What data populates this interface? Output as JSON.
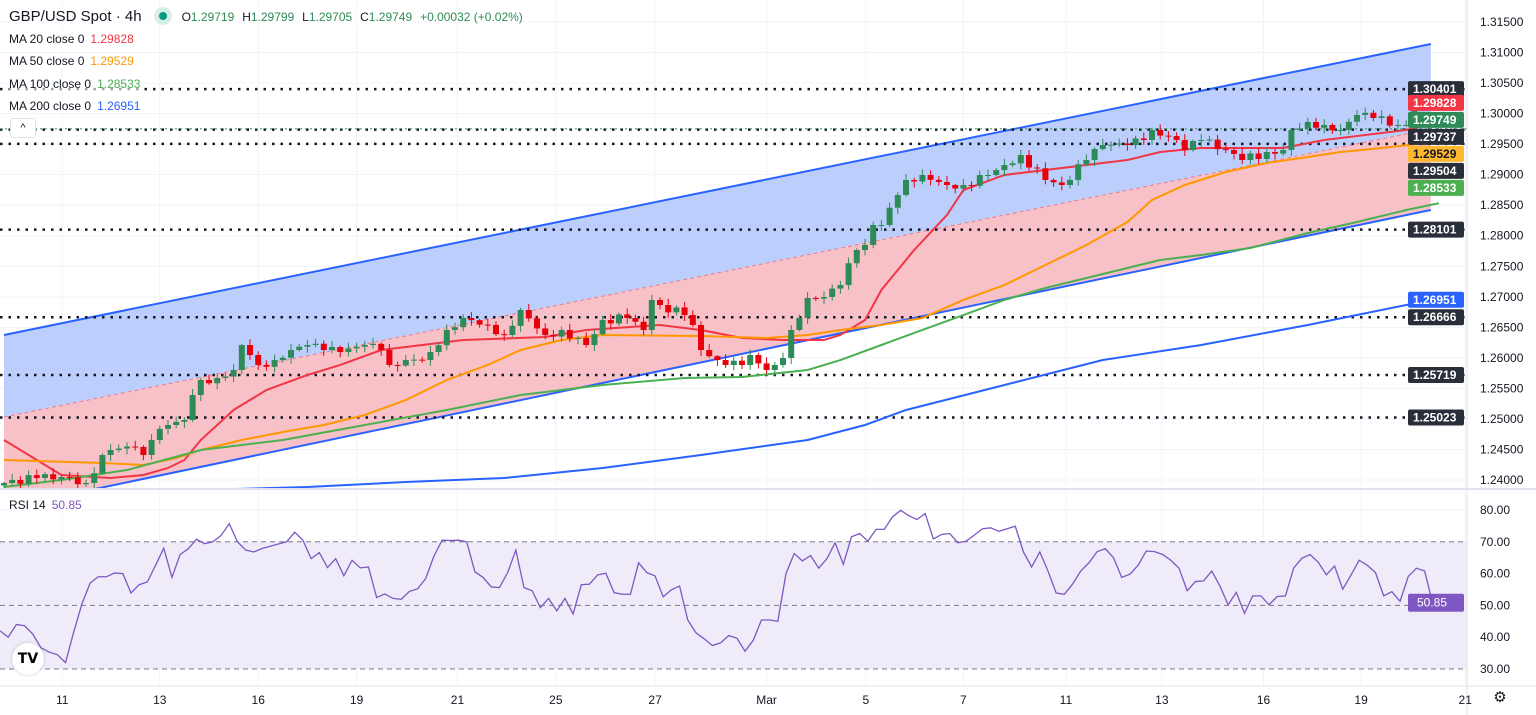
{
  "header": {
    "symbol": "GBP/USD Spot · 4h",
    "open_label": "O",
    "open": "1.29719",
    "high_label": "H",
    "high": "1.29799",
    "low_label": "L",
    "low": "1.29705",
    "close_label": "C",
    "close": "1.29749",
    "change": "+0.00032 (+0.02%)"
  },
  "indicators": [
    {
      "label": "MA 20 close 0",
      "value": "1.29828",
      "color": "#f23645"
    },
    {
      "label": "MA 50 close 0",
      "value": "1.29529",
      "color": "#ff9800"
    },
    {
      "label": "MA 100 close 0",
      "value": "1.28533",
      "color": "#4caf50"
    },
    {
      "label": "MA 200 close 0",
      "value": "1.26951",
      "color": "#2962ff"
    }
  ],
  "rsi_legend": {
    "label": "RSI 14",
    "value": "50.85"
  },
  "icons": {
    "collapse": "chevron-up-icon",
    "logo": "tradingview-logo",
    "settings": "gear-icon"
  },
  "collapse_glyph": "^",
  "logo_text": "TV",
  "gear_glyph": "⚙",
  "chart_data": {
    "type": "candlestick",
    "title": "GBP/USD Spot · 4h",
    "ylim": [
      1.2375,
      1.3185
    ],
    "price_ticks": [
      "1.24000",
      "1.24500",
      "1.25000",
      "1.25500",
      "1.26000",
      "1.26500",
      "1.27000",
      "1.27500",
      "1.28000",
      "1.28500",
      "1.29000",
      "1.29500",
      "1.30000",
      "1.30500",
      "1.31000",
      "1.31500"
    ],
    "x_labels": [
      {
        "label": "11",
        "bar": 7.1
      },
      {
        "label": "13",
        "bar": 19
      },
      {
        "label": "16",
        "bar": 31
      },
      {
        "label": "19",
        "bar": 43
      },
      {
        "label": "21",
        "bar": 55.3
      },
      {
        "label": "25",
        "bar": 67.3
      },
      {
        "label": "27",
        "bar": 79.4
      },
      {
        "label": "Mar",
        "bar": 93
      },
      {
        "label": "5",
        "bar": 105.1
      },
      {
        "label": "7",
        "bar": 117
      },
      {
        "label": "11",
        "bar": 129.5
      },
      {
        "label": "13",
        "bar": 141.2
      },
      {
        "label": "16",
        "bar": 153.6
      },
      {
        "label": "19",
        "bar": 165.5
      },
      {
        "label": "21",
        "bar": 178.2
      }
    ],
    "close_path": [
      [
        0,
        1.23951
      ],
      [
        4,
        1.24033
      ],
      [
        7,
        1.2405
      ],
      [
        10,
        1.23951
      ],
      [
        12,
        1.2441
      ],
      [
        13,
        1.24492
      ],
      [
        16,
        1.24541
      ],
      [
        17,
        1.2441
      ],
      [
        18,
        1.24655
      ],
      [
        20,
        1.24901
      ],
      [
        22,
        1.24983
      ],
      [
        23,
        1.25392
      ],
      [
        24,
        1.25638
      ],
      [
        26,
        1.25671
      ],
      [
        28,
        1.25802
      ],
      [
        29,
        1.26211
      ],
      [
        30,
        1.26047
      ],
      [
        31,
        1.25884
      ],
      [
        33,
        1.25965
      ],
      [
        35,
        1.26129
      ],
      [
        37,
        1.26211
      ],
      [
        39,
        1.26129
      ],
      [
        41,
        1.26096
      ],
      [
        44,
        1.26211
      ],
      [
        46,
        1.26129
      ],
      [
        47,
        1.25884
      ],
      [
        49,
        1.25965
      ],
      [
        51,
        1.25965
      ],
      [
        52,
        1.26096
      ],
      [
        54,
        1.26457
      ],
      [
        56,
        1.26653
      ],
      [
        59,
        1.26539
      ],
      [
        61,
        1.26375
      ],
      [
        63,
        1.26784
      ],
      [
        66,
        1.26375
      ],
      [
        68,
        1.26457
      ],
      [
        71,
        1.26211
      ],
      [
        73,
        1.2662
      ],
      [
        76,
        1.26653
      ],
      [
        78,
        1.26457
      ],
      [
        79,
        1.26948
      ],
      [
        80,
        1.26866
      ],
      [
        83,
        1.26702
      ],
      [
        84,
        1.26539
      ],
      [
        85,
        1.26129
      ],
      [
        87,
        1.25965
      ],
      [
        88,
        1.25884
      ],
      [
        90,
        1.25884
      ],
      [
        91,
        1.26047
      ],
      [
        93,
        1.25802
      ],
      [
        94,
        1.25884
      ],
      [
        95,
        1.25998
      ],
      [
        96,
        1.26457
      ],
      [
        98,
        1.26981
      ],
      [
        100,
        1.26997
      ],
      [
        102,
        1.27193
      ],
      [
        104,
        1.27767
      ],
      [
        105,
        1.27849
      ],
      [
        106,
        1.28176
      ],
      [
        107,
        1.28176
      ],
      [
        109,
        1.28667
      ],
      [
        110,
        1.28913
      ],
      [
        112,
        1.28995
      ],
      [
        115,
        1.28831
      ],
      [
        117,
        1.28831
      ],
      [
        120,
        1.28995
      ],
      [
        122,
        1.29158
      ],
      [
        124,
        1.29322
      ],
      [
        127,
        1.28913
      ],
      [
        129,
        1.28831
      ],
      [
        132,
        1.2924
      ],
      [
        134,
        1.29486
      ],
      [
        137,
        1.29486
      ],
      [
        139,
        1.29568
      ],
      [
        140,
        1.29732
      ],
      [
        143,
        1.29568
      ],
      [
        144,
        1.29404
      ],
      [
        146,
        1.29568
      ],
      [
        149,
        1.29404
      ],
      [
        151,
        1.2924
      ],
      [
        154,
        1.29371
      ],
      [
        156,
        1.29404
      ],
      [
        157,
        1.29732
      ],
      [
        159,
        1.29863
      ],
      [
        161,
        1.29814
      ],
      [
        163,
        1.29732
      ],
      [
        165,
        1.29978
      ],
      [
        167,
        1.29928
      ],
      [
        170,
        1.29814
      ],
      [
        171,
        1.29814
      ],
      [
        172,
        1.30092
      ],
      [
        173,
        1.30092
      ],
      [
        174,
        1.29749
      ]
    ],
    "last_bar": {
      "open": 1.29719,
      "high": 1.29799,
      "low": 1.29705,
      "close": 1.29749
    },
    "moving_averages": [
      {
        "name": "MA 20",
        "color": "#f23645",
        "points": [
          [
            0,
            1.24655
          ],
          [
            7,
            1.24082
          ],
          [
            13,
            1.24033
          ],
          [
            17,
            1.24082
          ],
          [
            20,
            1.24197
          ],
          [
            22,
            1.24328
          ],
          [
            24,
            1.24655
          ],
          [
            28,
            1.25147
          ],
          [
            32,
            1.25474
          ],
          [
            37,
            1.2572
          ],
          [
            41,
            1.25884
          ],
          [
            46,
            1.26129
          ],
          [
            51,
            1.26211
          ],
          [
            56,
            1.26293
          ],
          [
            66,
            1.26342
          ],
          [
            71,
            1.26457
          ],
          [
            80,
            1.26539
          ],
          [
            85,
            1.26457
          ],
          [
            90,
            1.26326
          ],
          [
            95,
            1.26293
          ],
          [
            100,
            1.26293
          ],
          [
            102,
            1.26375
          ],
          [
            105,
            1.2662
          ],
          [
            107,
            1.27112
          ],
          [
            111,
            1.27767
          ],
          [
            115,
            1.2834
          ],
          [
            117,
            1.28749
          ],
          [
            122,
            1.28995
          ],
          [
            127,
            1.29077
          ],
          [
            132,
            1.29158
          ],
          [
            137,
            1.2924
          ],
          [
            141,
            1.29371
          ],
          [
            146,
            1.29437
          ],
          [
            156,
            1.29437
          ],
          [
            161,
            1.29568
          ],
          [
            166,
            1.2965
          ],
          [
            171,
            1.29732
          ],
          [
            174,
            1.29828
          ]
        ]
      },
      {
        "name": "MA 50",
        "color": "#ff9800",
        "points": [
          [
            0,
            1.24328
          ],
          [
            12,
            1.24279
          ],
          [
            17,
            1.24246
          ],
          [
            21,
            1.24361
          ],
          [
            24,
            1.24492
          ],
          [
            29,
            1.24655
          ],
          [
            34,
            1.24786
          ],
          [
            39,
            1.24901
          ],
          [
            44,
            1.25065
          ],
          [
            49,
            1.2531
          ],
          [
            54,
            1.25638
          ],
          [
            59,
            1.25884
          ],
          [
            63,
            1.26129
          ],
          [
            68,
            1.26293
          ],
          [
            73,
            1.26375
          ],
          [
            85,
            1.26358
          ],
          [
            93,
            1.26326
          ],
          [
            98,
            1.26375
          ],
          [
            102,
            1.26457
          ],
          [
            107,
            1.26539
          ],
          [
            112,
            1.26653
          ],
          [
            117,
            1.26948
          ],
          [
            122,
            1.27193
          ],
          [
            127,
            1.27521
          ],
          [
            132,
            1.27848
          ],
          [
            137,
            1.28225
          ],
          [
            140,
            1.28585
          ],
          [
            144,
            1.28831
          ],
          [
            149,
            1.29044
          ],
          [
            154,
            1.29191
          ],
          [
            159,
            1.29289
          ],
          [
            163,
            1.29371
          ],
          [
            168,
            1.29437
          ],
          [
            174,
            1.29529
          ]
        ]
      },
      {
        "name": "MA 100",
        "color": "#4caf50",
        "points": [
          [
            0,
            1.23886
          ],
          [
            7,
            1.24
          ],
          [
            15,
            1.24164
          ],
          [
            24,
            1.24492
          ],
          [
            34,
            1.24655
          ],
          [
            44,
            1.24901
          ],
          [
            54,
            1.25147
          ],
          [
            63,
            1.25392
          ],
          [
            73,
            1.25556
          ],
          [
            83,
            1.25671
          ],
          [
            90,
            1.25687
          ],
          [
            98,
            1.25802
          ],
          [
            102,
            1.25965
          ],
          [
            107,
            1.26211
          ],
          [
            112,
            1.26457
          ],
          [
            117,
            1.26702
          ],
          [
            122,
            1.26948
          ],
          [
            127,
            1.27144
          ],
          [
            132,
            1.27308
          ],
          [
            137,
            1.27472
          ],
          [
            141,
            1.27603
          ],
          [
            146,
            1.27685
          ],
          [
            152,
            1.27799
          ],
          [
            159,
            1.28045
          ],
          [
            165,
            1.28225
          ],
          [
            171,
            1.28422
          ],
          [
            175,
            1.28533
          ]
        ]
      },
      {
        "name": "MA 200",
        "color": "#2962ff",
        "points": [
          [
            24,
            1.23837
          ],
          [
            37,
            1.23886
          ],
          [
            49,
            1.23968
          ],
          [
            61,
            1.24033
          ],
          [
            73,
            1.24197
          ],
          [
            85,
            1.2441
          ],
          [
            98,
            1.24655
          ],
          [
            105,
            1.24901
          ],
          [
            110,
            1.25147
          ],
          [
            122,
            1.25556
          ],
          [
            134,
            1.25965
          ],
          [
            146,
            1.26211
          ],
          [
            159,
            1.26539
          ],
          [
            171,
            1.26866
          ],
          [
            175,
            1.26951
          ]
        ]
      }
    ],
    "channel": {
      "upper": [
        [
          0,
          1.26375
        ],
        [
          174,
          1.3114
        ]
      ],
      "middle": [
        [
          0,
          1.25032
        ],
        [
          174,
          1.29748
        ]
      ],
      "lower": [
        [
          0,
          1.23542
        ],
        [
          174,
          1.28422
        ]
      ]
    },
    "horizontal_levels": [
      "1.30401",
      "1.29737",
      "1.29504",
      "1.28101",
      "1.26666",
      "1.25719",
      "1.25023"
    ],
    "price_labels": [
      {
        "value": "1.30401",
        "bg": "#2a2e39",
        "fg": "#ffffff"
      },
      {
        "value": "1.29828",
        "bg": "#f23645",
        "fg": "#ffffff"
      },
      {
        "value": "1.29749",
        "bg": "#2e8b57",
        "fg": "#ffffff"
      },
      {
        "value": "1.29737",
        "bg": "#2a2e39",
        "fg": "#ffffff"
      },
      {
        "value": "1.29529",
        "bg": "#ffb82e",
        "fg": "#131722"
      },
      {
        "value": "1.29504",
        "bg": "#2a2e39",
        "fg": "#ffffff"
      },
      {
        "value": "1.28533",
        "bg": "#4caf50",
        "fg": "#ffffff"
      },
      {
        "value": "1.28101",
        "bg": "#2a2e39",
        "fg": "#ffffff"
      },
      {
        "value": "1.26951",
        "bg": "#2962ff",
        "fg": "#ffffff"
      },
      {
        "value": "1.26666",
        "bg": "#2a2e39",
        "fg": "#ffffff"
      },
      {
        "value": "1.25719",
        "bg": "#2a2e39",
        "fg": "#ffffff"
      },
      {
        "value": "1.25023",
        "bg": "#2a2e39",
        "fg": "#ffffff"
      }
    ],
    "colors": {
      "up": "#2e8b57",
      "down": "#e8000b",
      "channel_upper_fill": "#bccffc",
      "channel_lower_fill": "#f8c1c8",
      "channel_line": "#2962ff",
      "rsi": "#7e57c2",
      "rsi_band": "#efebf9"
    },
    "rsi": {
      "period": 14,
      "ylim": [
        25,
        85
      ],
      "ticks": [
        "30.00",
        "40.00",
        "50.00",
        "60.00",
        "70.00",
        "80.00"
      ],
      "bands": [
        30,
        50,
        70
      ],
      "last": "50.85",
      "values": [
        42,
        40,
        44,
        43.6,
        41,
        36.7,
        35.3,
        34.5,
        32,
        41.6,
        50.4,
        57,
        59,
        59,
        60.2,
        60,
        53.9,
        56.5,
        57.4,
        62.6,
        68,
        58.8,
        66,
        67.8,
        70.8,
        69.4,
        70,
        72,
        75.7,
        70,
        67.4,
        66.8,
        67.9,
        68.6,
        69.3,
        70,
        73,
        70.5,
        64.7,
        66.6,
        61.9,
        64.7,
        59.3,
        64.2,
        61.8,
        62.1,
        52.5,
        53.6,
        52.2,
        51.9,
        54.4,
        55.2,
        58.5,
        65.5,
        70.5,
        70.4,
        70.5,
        70,
        60.6,
        58.8,
        55.8,
        55.6,
        60.3,
        67.4,
        55.6,
        54.6,
        49.3,
        52.2,
        48.3,
        52.2,
        47.3,
        56.5,
        56.7,
        59.6,
        60.1,
        54,
        53.5,
        53.5,
        63.4,
        60.3,
        59.3,
        52.7,
        54.9,
        56.1,
        45.4,
        41.4,
        39.5,
        37.4,
        38.2,
        40.5,
        39.7,
        35.6,
        39,
        45.4,
        45.4,
        45,
        60,
        66.3,
        64,
        65.7,
        61.7,
        64.7,
        69.7,
        62.9,
        71.6,
        72.6,
        70.2,
        73.9,
        73.9,
        77.8,
        79.9,
        78.2,
        77,
        78.9,
        70.9,
        72.3,
        72.6,
        69.7,
        70.2,
        72.1,
        74.1,
        74.4,
        73.3,
        74.1,
        74.9,
        66.8,
        62.1,
        66.8,
        60.8,
        53.9,
        53.5,
        56.7,
        60.8,
        63.4,
        66.9,
        67.8,
        65,
        58.8,
        59.8,
        62.6,
        67.1,
        66.9,
        66,
        64.2,
        61.7,
        54.6,
        57.5,
        57.7,
        60.8,
        56.1,
        50.2,
        54.1,
        47.5,
        53,
        53,
        50.2,
        52.8,
        53,
        61.7,
        64.8,
        66,
        63.6,
        59.6,
        62.4,
        55.1,
        59.5,
        64.2,
        62.6,
        60.3,
        53,
        54.3,
        51.3,
        59.1,
        61.7,
        60.8,
        50.4,
        50.85
      ]
    }
  }
}
